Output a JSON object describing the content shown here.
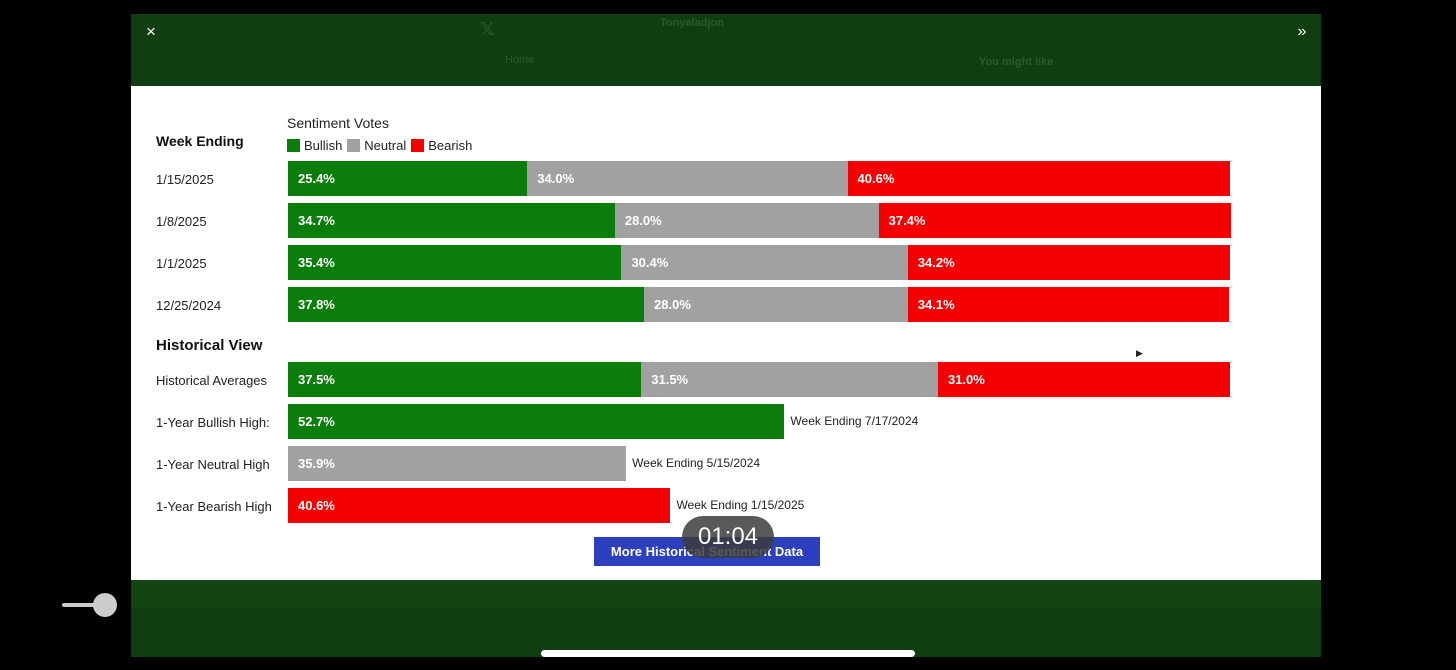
{
  "window": {
    "close_glyph": "×",
    "expand_glyph": "»"
  },
  "background": {
    "x_logo": "𝕏",
    "profile_name": "Tonyeladjon",
    "home_label": "Home",
    "you_might_like": "You might like"
  },
  "chart": {
    "legend_title": "Sentiment Votes",
    "row_header": "Week Ending",
    "legend": [
      {
        "label": "Bullish",
        "color": "#0b7d0b"
      },
      {
        "label": "Neutral",
        "color": "#a1a1a1"
      },
      {
        "label": "Bearish",
        "color": "#f50000"
      }
    ],
    "weeks": [
      {
        "label": "1/15/2025",
        "bullish": 25.4,
        "neutral": 34.0,
        "bearish": 40.6,
        "bullish_text": "25.4%",
        "neutral_text": "34.0%",
        "bearish_text": "40.6%"
      },
      {
        "label": "1/8/2025",
        "bullish": 34.7,
        "neutral": 28.0,
        "bearish": 37.4,
        "bullish_text": "34.7%",
        "neutral_text": "28.0%",
        "bearish_text": "37.4%"
      },
      {
        "label": "1/1/2025",
        "bullish": 35.4,
        "neutral": 30.4,
        "bearish": 34.2,
        "bullish_text": "35.4%",
        "neutral_text": "30.4%",
        "bearish_text": "34.2%"
      },
      {
        "label": "12/25/2024",
        "bullish": 37.8,
        "neutral": 28.0,
        "bearish": 34.1,
        "bullish_text": "37.8%",
        "neutral_text": "28.0%",
        "bearish_text": "34.1%"
      }
    ],
    "historical_title": "Historical View",
    "historical_averages": {
      "label": "Historical Averages",
      "bullish": 37.5,
      "neutral": 31.5,
      "bearish": 31.0,
      "bullish_text": "37.5%",
      "neutral_text": "31.5%",
      "bearish_text": "31.0%"
    },
    "highs": [
      {
        "label": "1-Year Bullish High:",
        "type": "bull",
        "value": 52.7,
        "value_text": "52.7%",
        "note": "Week Ending 7/17/2024"
      },
      {
        "label": "1-Year Neutral High",
        "type": "neut",
        "value": 35.9,
        "value_text": "35.9%",
        "note": "Week Ending 5/15/2024"
      },
      {
        "label": "1-Year Bearish High",
        "type": "bear",
        "value": 40.6,
        "value_text": "40.6%",
        "note": "Week Ending 1/15/2025"
      }
    ],
    "more_button": "More Historical Sentiment Data"
  },
  "chart_data": {
    "type": "bar",
    "title": "Sentiment Votes",
    "categories": [
      "1/15/2025",
      "1/8/2025",
      "1/1/2025",
      "12/25/2024",
      "Historical Averages"
    ],
    "series": [
      {
        "name": "Bullish",
        "values": [
          25.4,
          34.7,
          35.4,
          37.8,
          37.5
        ]
      },
      {
        "name": "Neutral",
        "values": [
          34.0,
          28.0,
          30.4,
          28.0,
          31.5
        ]
      },
      {
        "name": "Bearish",
        "values": [
          40.6,
          37.4,
          34.2,
          34.1,
          31.0
        ]
      }
    ],
    "highs": [
      {
        "name": "1-Year Bullish High:",
        "value": 52.7,
        "week": "Week Ending 7/17/2024"
      },
      {
        "name": "1-Year Neutral High",
        "value": 35.9,
        "week": "Week Ending 5/15/2024"
      },
      {
        "name": "1-Year Bearish High",
        "value": 40.6,
        "week": "Week Ending 1/15/2025"
      }
    ],
    "stacked": true,
    "unit": "%"
  },
  "player": {
    "timer": "01:04",
    "volume": 0.8
  }
}
